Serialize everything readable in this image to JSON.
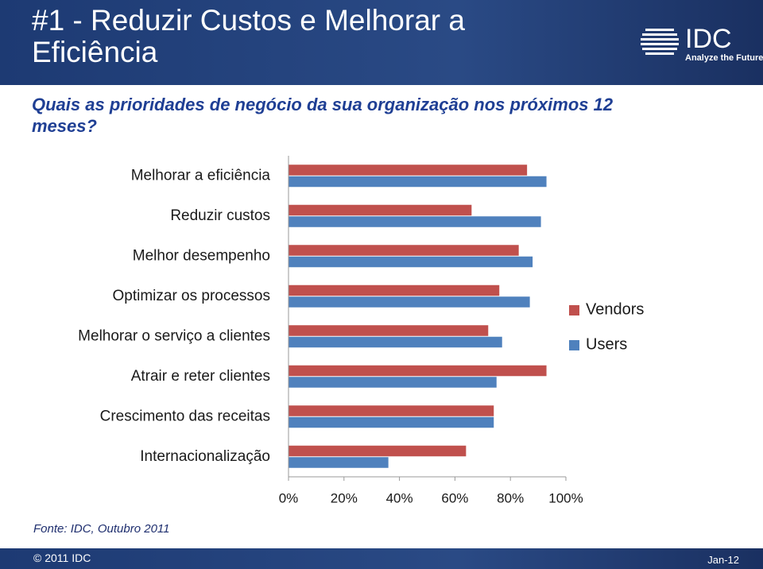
{
  "slide": {
    "title": "#1 - Reduzir Custos e Melhorar a Eficiência",
    "question": "Quais as prioridades de negócio da sua organização nos próximos 12 meses?",
    "source": "Fonte: IDC, Outubro 2011",
    "copyright": "© 2011 IDC",
    "date": "Jan-12"
  },
  "logo": {
    "name": "IDC",
    "tagline": "Analyze the Future"
  },
  "chart_data": {
    "type": "hbar",
    "categories": [
      "Melhorar a eficiência",
      "Reduzir custos",
      "Melhor desempenho",
      "Optimizar os processos",
      "Melhorar o serviço a clientes",
      "Atrair e reter clientes",
      "Crescimento das receitas",
      "Internacionalização"
    ],
    "series": [
      {
        "name": "Vendors",
        "color": "#c0504d",
        "values": [
          86,
          66,
          83,
          76,
          72,
          93,
          74,
          64
        ]
      },
      {
        "name": "Users",
        "color": "#4f81bd",
        "values": [
          93,
          91,
          88,
          87,
          77,
          75,
          74,
          36
        ]
      }
    ],
    "xlim": [
      0,
      100
    ],
    "xticks": [
      {
        "value": 0,
        "label": "0%"
      },
      {
        "value": 20,
        "label": "20%"
      },
      {
        "value": 40,
        "label": "40%"
      },
      {
        "value": 60,
        "label": "60%"
      },
      {
        "value": 80,
        "label": "80%"
      },
      {
        "value": 100,
        "label": "100%"
      }
    ],
    "grid": false,
    "legend": "right"
  }
}
